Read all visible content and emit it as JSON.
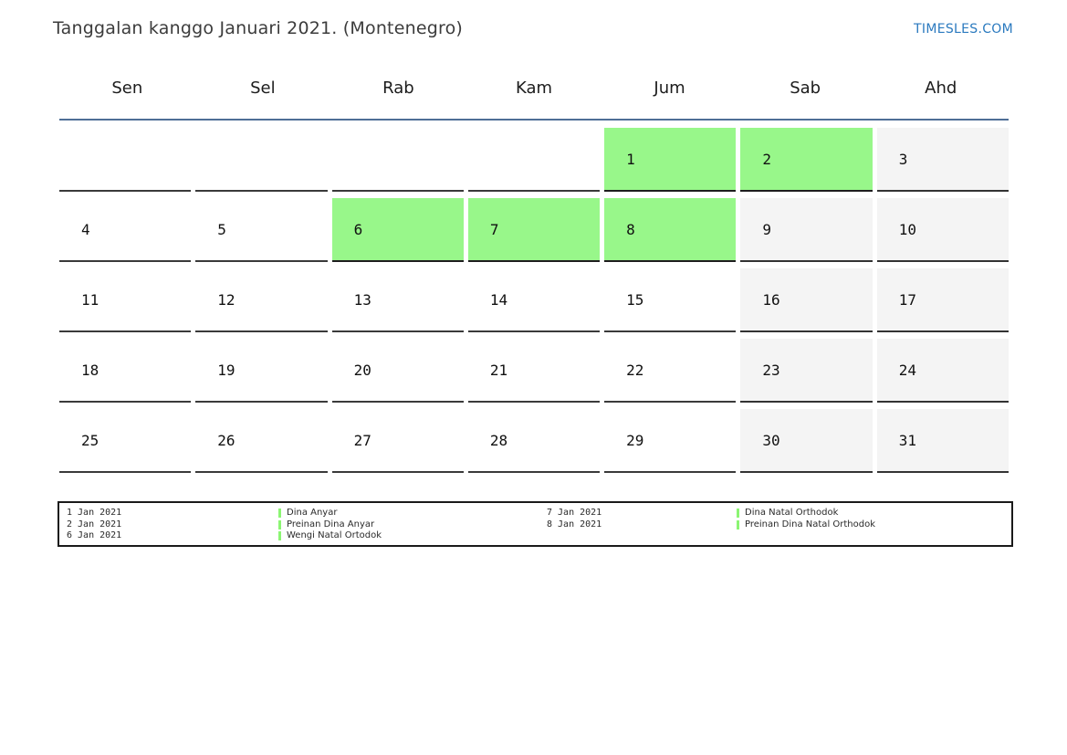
{
  "header": {
    "title": "Tanggalan kanggo Januari 2021. (Montenegro)",
    "site_link": "TIMESLES.COM"
  },
  "weekdays": [
    "Sen",
    "Sel",
    "Rab",
    "Kam",
    "Jum",
    "Sab",
    "Ahd"
  ],
  "month_grid": {
    "weeks": [
      [
        "",
        "",
        "",
        "",
        "1",
        "2",
        "3"
      ],
      [
        "4",
        "5",
        "6",
        "7",
        "8",
        "9",
        "10"
      ],
      [
        "11",
        "12",
        "13",
        "14",
        "15",
        "16",
        "17"
      ],
      [
        "18",
        "19",
        "20",
        "21",
        "22",
        "23",
        "24"
      ],
      [
        "25",
        "26",
        "27",
        "28",
        "29",
        "30",
        "31"
      ]
    ],
    "holiday_days": [
      "1",
      "2",
      "6",
      "7",
      "8"
    ],
    "weekend_days": [
      "3",
      "9",
      "10",
      "16",
      "17",
      "23",
      "24",
      "30",
      "31"
    ]
  },
  "legend": {
    "columns": [
      {
        "entries": [
          {
            "date": "1 Jan 2021",
            "name": "Dina Anyar"
          },
          {
            "date": "2 Jan 2021",
            "name": "Preinan Dina Anyar"
          },
          {
            "date": "6 Jan 2021",
            "name": "Wengi Natal Ortodok"
          }
        ]
      },
      {
        "entries": [
          {
            "date": "7 Jan 2021",
            "name": "Dina Natal Orthodok"
          },
          {
            "date": "8 Jan 2021",
            "name": "Preinan Dina Natal Orthodok"
          }
        ]
      }
    ]
  },
  "colors": {
    "holiday_green": "#98f78a",
    "weekend_gray": "#f4f4f4",
    "header_rule_blue": "#4e6e96",
    "site_link_blue": "#2b7abf",
    "cell_border": "#3a3a3a",
    "legend_marker_green": "#8cf573"
  }
}
